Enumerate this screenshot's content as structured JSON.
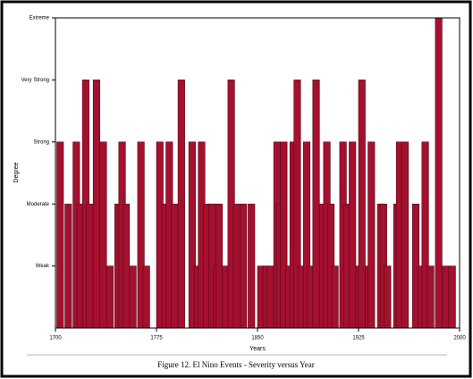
{
  "chart_data": {
    "type": "bar",
    "caption": "Figure 12.  El Nino Events - Severity versus Year",
    "x_label": "Years",
    "y_label": "Degree",
    "color": "#a3112f",
    "xlim": [
      1700,
      2000
    ],
    "xticks": [
      1700,
      1775,
      1850,
      1925,
      2000
    ],
    "ylim": [
      0,
      5
    ],
    "yticks": [
      {
        "value": 1,
        "label": "Weak"
      },
      {
        "value": 2,
        "label": "Moderate"
      },
      {
        "value": 3,
        "label": "Strong"
      },
      {
        "value": 4,
        "label": "Very Strong"
      },
      {
        "value": 5,
        "label": "Extreme"
      }
    ],
    "x": [
      1701,
      1707,
      1713,
      1716,
      1720,
      1723,
      1728,
      1733,
      1738,
      1744,
      1747,
      1750,
      1755,
      1761,
      1765,
      1775,
      1779,
      1782,
      1786,
      1791,
      1799,
      1803,
      1806,
      1810,
      1814,
      1817,
      1819,
      1824,
      1828,
      1832,
      1837,
      1843,
      1850,
      1854,
      1857,
      1862,
      1864,
      1867,
      1871,
      1874,
      1877,
      1880,
      1884,
      1887,
      1891,
      1896,
      1899,
      1902,
      1905,
      1911,
      1914,
      1918,
      1923,
      1925,
      1930,
      1932,
      1939,
      1941,
      1944,
      1951,
      1953,
      1957,
      1965,
      1969,
      1972,
      1976,
      1982,
      1987,
      1992
    ],
    "values": [
      3,
      2,
      3,
      2,
      4,
      2,
      4,
      3,
      1,
      2,
      3,
      2,
      1,
      3,
      1,
      3,
      2,
      3,
      2,
      4,
      3,
      1,
      3,
      2,
      2,
      1,
      2,
      1,
      4,
      2,
      2,
      2,
      1,
      1,
      1,
      3,
      2,
      3,
      1,
      3,
      4,
      1,
      3,
      1,
      4,
      2,
      3,
      2,
      1,
      3,
      2,
      3,
      1,
      4,
      1,
      3,
      2,
      2,
      1,
      2,
      3,
      3,
      2,
      1,
      3,
      1,
      5,
      1,
      1
    ]
  }
}
